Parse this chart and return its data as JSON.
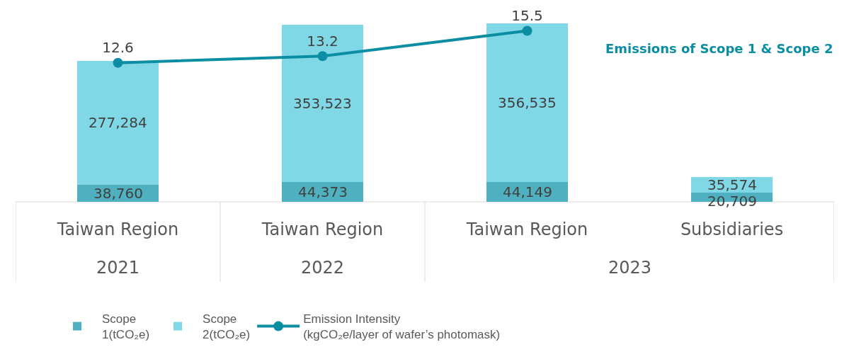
{
  "chart_data": {
    "type": "bar",
    "stacked": true,
    "categories": [
      "Taiwan Region",
      "Taiwan Region",
      "Taiwan Region",
      "Subsidiaries"
    ],
    "series": [
      {
        "name": "Scope 1(tCO₂e)",
        "color": "#4fb0c0",
        "values": [
          38760,
          44373,
          44149,
          20709
        ],
        "value_labels": [
          "38,760",
          "44,373",
          "44,149",
          "20,709"
        ]
      },
      {
        "name": "Scope 2(tCO₂e)",
        "color": "#80d7e6",
        "values": [
          277284,
          353523,
          356535,
          35574
        ],
        "value_labels": [
          "277,284",
          "353,523",
          "356,535",
          "35,574"
        ]
      },
      {
        "name": "Emission Intensity (kgCO₂e/layer of wafer’s photomask)",
        "type": "line",
        "axis": "y2",
        "color": "#0b8ea2",
        "values": [
          12.6,
          13.2,
          15.5,
          null
        ],
        "value_labels": [
          "12.6",
          "13.2",
          "15.5",
          null
        ]
      }
    ],
    "annotations": [
      "2021",
      "2022",
      "2023",
      "Emissions of Scope 1 & Scope 2"
    ],
    "legend": "bottom",
    "marker": "circle",
    "line_style": "solid",
    "tick_labels": "x"
  }
}
